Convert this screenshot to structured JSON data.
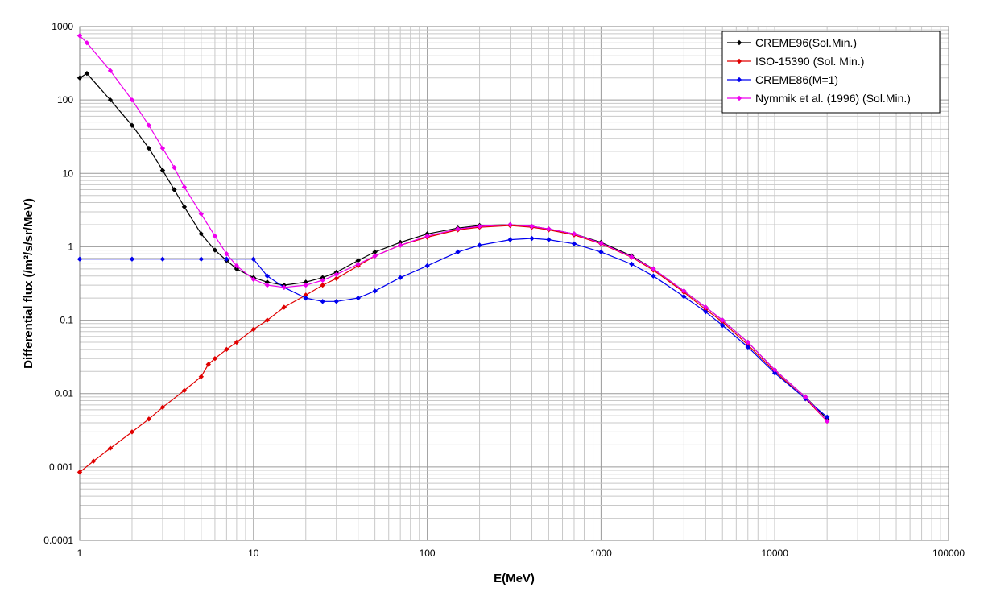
{
  "chart_data": {
    "type": "line",
    "xlabel": "E(MeV)",
    "ylabel": "Differential flux (/m²/s/sr/MeV)",
    "x_scale": "log",
    "y_scale": "log",
    "xlim": [
      1,
      100000
    ],
    "ylim": [
      0.0001,
      1000
    ],
    "x_ticks": [
      "1",
      "10",
      "100",
      "1000",
      "10000",
      "100000"
    ],
    "y_ticks": [
      "0.0001",
      "0.001",
      "0.01",
      "0.1",
      "1",
      "10",
      "100",
      "1000"
    ],
    "grid": true,
    "legend_position": "top-right",
    "series": [
      {
        "name": "CREME96(Sol.Min.)",
        "color": "#000000",
        "x": [
          1,
          1.1,
          1.5,
          2,
          2.5,
          3,
          3.5,
          4,
          5,
          6,
          7,
          8,
          10,
          12,
          15,
          20,
          25,
          30,
          40,
          50,
          70,
          100,
          150,
          200,
          300,
          400,
          500,
          700,
          1000,
          1500,
          2000,
          3000,
          4000,
          5000,
          7000,
          10000,
          15000,
          20000
        ],
        "y": [
          200,
          230,
          100,
          45,
          22,
          11,
          6,
          3.5,
          1.5,
          0.9,
          0.65,
          0.5,
          0.38,
          0.33,
          0.3,
          0.33,
          0.38,
          0.45,
          0.65,
          0.85,
          1.15,
          1.5,
          1.8,
          1.95,
          2.0,
          1.9,
          1.75,
          1.5,
          1.15,
          0.75,
          0.5,
          0.25,
          0.15,
          0.1,
          0.05,
          0.021,
          0.009,
          0.0045
        ]
      },
      {
        "name": "ISO-15390 (Sol. Min.)",
        "color": "#e00000",
        "x": [
          1,
          1.2,
          1.5,
          2,
          2.5,
          3,
          4,
          5,
          5.5,
          6,
          7,
          8,
          10,
          12,
          15,
          20,
          25,
          30,
          40,
          50,
          70,
          100,
          150,
          200,
          300,
          400,
          500,
          700,
          1000,
          1500,
          2000,
          3000,
          4000,
          5000,
          7000,
          10000,
          15000,
          20000
        ],
        "y": [
          0.00085,
          0.0012,
          0.0018,
          0.003,
          0.0045,
          0.0065,
          0.011,
          0.017,
          0.025,
          0.03,
          0.04,
          0.05,
          0.075,
          0.1,
          0.15,
          0.22,
          0.3,
          0.37,
          0.55,
          0.75,
          1.05,
          1.35,
          1.7,
          1.85,
          1.95,
          1.85,
          1.7,
          1.45,
          1.1,
          0.72,
          0.48,
          0.24,
          0.14,
          0.095,
          0.046,
          0.02,
          0.0085,
          0.0042
        ]
      },
      {
        "name": "CREME86(M=1)",
        "color": "#0000ee",
        "x": [
          1,
          2,
          3,
          5,
          7,
          10,
          12,
          15,
          20,
          25,
          30,
          40,
          50,
          70,
          100,
          150,
          200,
          300,
          400,
          500,
          700,
          1000,
          1500,
          2000,
          3000,
          4000,
          5000,
          7000,
          10000,
          15000,
          20000
        ],
        "y": [
          0.68,
          0.68,
          0.68,
          0.68,
          0.68,
          0.68,
          0.4,
          0.28,
          0.2,
          0.18,
          0.18,
          0.2,
          0.25,
          0.38,
          0.55,
          0.85,
          1.05,
          1.25,
          1.3,
          1.25,
          1.1,
          0.85,
          0.58,
          0.4,
          0.21,
          0.13,
          0.085,
          0.043,
          0.019,
          0.0085,
          0.0048
        ]
      },
      {
        "name": "Nymmik et al. (1996) (Sol.Min.)",
        "color": "#ee00ee",
        "x": [
          1,
          1.1,
          1.5,
          2,
          2.5,
          3,
          3.5,
          4,
          5,
          6,
          7,
          8,
          10,
          12,
          15,
          20,
          25,
          30,
          40,
          50,
          70,
          100,
          150,
          200,
          300,
          400,
          500,
          700,
          1000,
          1500,
          2000,
          3000,
          4000,
          5000,
          7000,
          10000,
          15000,
          20000
        ],
        "y": [
          750,
          600,
          250,
          100,
          45,
          22,
          12,
          6.5,
          2.8,
          1.4,
          0.8,
          0.55,
          0.36,
          0.3,
          0.28,
          0.3,
          0.35,
          0.42,
          0.58,
          0.75,
          1.05,
          1.4,
          1.75,
          1.9,
          2.0,
          1.9,
          1.75,
          1.5,
          1.12,
          0.73,
          0.5,
          0.25,
          0.15,
          0.1,
          0.05,
          0.021,
          0.009,
          0.0042
        ]
      }
    ]
  }
}
